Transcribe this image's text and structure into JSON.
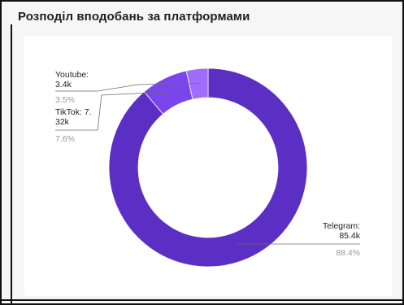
{
  "header": {
    "title": "Розподіл вподобань за платформами"
  },
  "chart_data": {
    "type": "pie",
    "donut": true,
    "title": "Розподіл вподобань за платформами",
    "slices": [
      {
        "name": "Telegram",
        "value_label": "85.4k",
        "value": 85.4,
        "percent_label": "88.4%",
        "percent": 88.4,
        "color": "#5b2fc4"
      },
      {
        "name": "TikTok",
        "value_label": "7.32k",
        "value": 7.32,
        "percent_label": "7.6%",
        "percent": 7.6,
        "color": "#7b45ee"
      },
      {
        "name": "Youtube",
        "value_label": "3.4k",
        "value": 3.4,
        "percent_label": "3.5%",
        "percent": 3.5,
        "color": "#a06cfb"
      }
    ],
    "labels": {
      "youtube_line1": "Youtube:",
      "youtube_line2": "3.4k",
      "tiktok_line1": "TikTok: 7.",
      "tiktok_line2": "32k",
      "telegram_line1": "Telegram:",
      "telegram_line2": "85.4k"
    },
    "legend": "none"
  }
}
